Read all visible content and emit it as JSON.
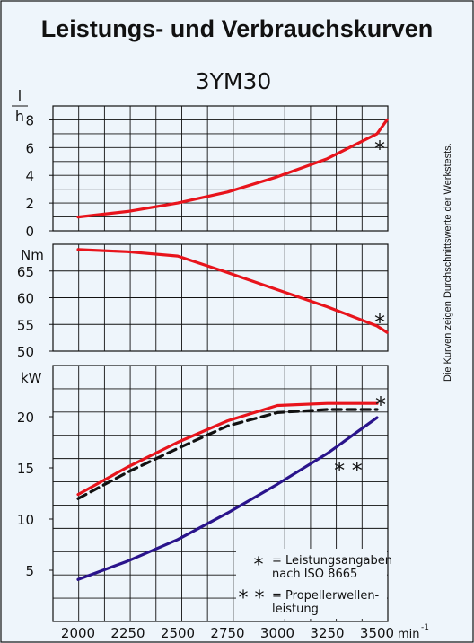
{
  "title": "Leistungs- und Verbrauchskurven",
  "subtitle": "3YM30",
  "side_note": "Die Kurven zeigen Durchschnittswerte der Werkstests.",
  "colors": {
    "background": "#eef5fb",
    "grid": "#111111",
    "red_curve": "#e8141c",
    "black_dashed": "#111111",
    "blue_curve": "#2a148c"
  },
  "x_axis": {
    "ticks": [
      2000,
      2250,
      2500,
      2750,
      3000,
      3250,
      3500
    ],
    "unit": "min",
    "unit_sup": "-1"
  },
  "legend": {
    "star1_symbol": "*",
    "star1_line1": "= Leistungsangaben",
    "star1_line2": "nach ISO 8665",
    "star2_symbol": "* *",
    "star2_line1": "= Propellerwellen-",
    "star2_line2": "leistung"
  },
  "chart_data": [
    {
      "type": "line",
      "ylabel_top": "l",
      "ylabel_bottom": "h",
      "ylim": [
        0,
        9
      ],
      "yticks": [
        0,
        2,
        4,
        6,
        8
      ],
      "xlim": [
        1950,
        3600
      ],
      "grid": true,
      "annotation": "*",
      "series": [
        {
          "color": "#e8141c",
          "x": [
            2000,
            2250,
            2500,
            2750,
            3000,
            3250,
            3500,
            3550
          ],
          "y": [
            1.0,
            1.4,
            2.0,
            2.8,
            3.9,
            5.2,
            7.0,
            8.0
          ]
        }
      ]
    },
    {
      "type": "line",
      "ylabel": "Nm",
      "ylim": [
        50,
        70
      ],
      "yticks": [
        50,
        55,
        60,
        65
      ],
      "xlim": [
        1950,
        3600
      ],
      "grid": true,
      "annotation": "*",
      "series": [
        {
          "color": "#e8141c",
          "x": [
            2000,
            2250,
            2500,
            2750,
            3000,
            3250,
            3500,
            3550
          ],
          "y": [
            69,
            68.6,
            67.8,
            64.7,
            61.5,
            58.3,
            54.7,
            53.5
          ]
        }
      ]
    },
    {
      "type": "line",
      "ylabel": "kW",
      "ylim": [
        0,
        25
      ],
      "yticks": [
        5,
        10,
        15,
        20
      ],
      "xlim": [
        1950,
        3600
      ],
      "grid": true,
      "annotations": [
        "*",
        "* *"
      ],
      "series": [
        {
          "color": "#e8141c",
          "style": "solid",
          "x": [
            2000,
            2250,
            2500,
            2750,
            3000,
            3250,
            3500
          ],
          "y": [
            12.4,
            15.1,
            17.5,
            19.6,
            21.1,
            21.3,
            21.3
          ]
        },
        {
          "color": "#111111",
          "style": "dashed",
          "x": [
            2000,
            2250,
            2500,
            2750,
            3000,
            3250,
            3500
          ],
          "y": [
            12.0,
            14.6,
            16.9,
            19.1,
            20.4,
            20.7,
            20.7
          ]
        },
        {
          "color": "#2a148c",
          "style": "solid",
          "x": [
            2000,
            2250,
            2500,
            2750,
            3000,
            3250,
            3500
          ],
          "y": [
            4.1,
            5.9,
            8.0,
            10.6,
            13.4,
            16.4,
            19.9
          ]
        }
      ]
    }
  ]
}
